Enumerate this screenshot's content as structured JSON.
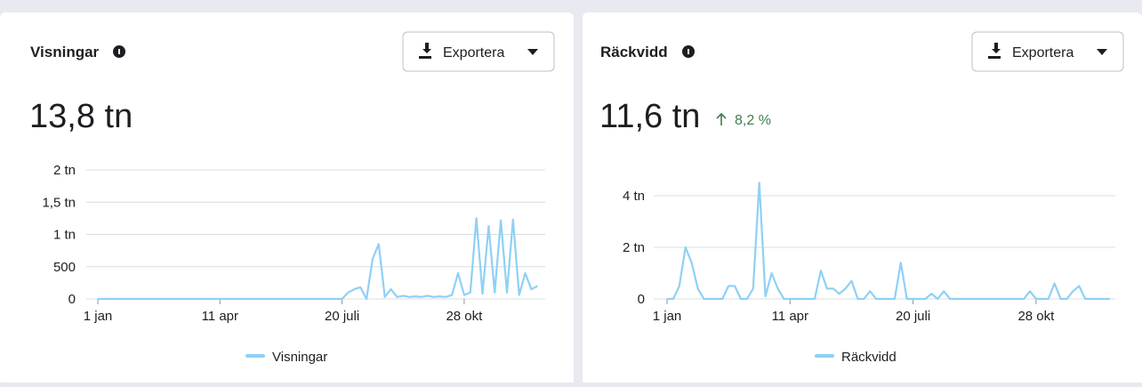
{
  "cards": [
    {
      "title": "Visningar",
      "total": "13,8 tn",
      "button": "Exportera"
    },
    {
      "title": "Räckvidd",
      "total": "11,6 tn",
      "change": "8,2 %",
      "button": "Exportera"
    }
  ],
  "chart_data": [
    {
      "type": "line",
      "categories": [
        "1 jan",
        null,
        null,
        null,
        null,
        null,
        null,
        null,
        null,
        null,
        null,
        null,
        null,
        null,
        null,
        null,
        null,
        null,
        null,
        null,
        "11 apr",
        null,
        null,
        null,
        null,
        null,
        null,
        null,
        null,
        null,
        null,
        null,
        null,
        null,
        null,
        null,
        null,
        null,
        null,
        null,
        "20 juli",
        null,
        null,
        null,
        null,
        null,
        null,
        null,
        null,
        null,
        null,
        null,
        null,
        null,
        null,
        null,
        null,
        null,
        null,
        null,
        "28 okt",
        null,
        null,
        null,
        null,
        null,
        null,
        null,
        null,
        null,
        null,
        null,
        null
      ],
      "series": [
        {
          "name": "Visningar",
          "color": "#8fd0f5",
          "values": [
            0,
            0,
            0,
            0,
            0,
            0,
            0,
            0,
            0,
            0,
            0,
            0,
            0,
            0,
            0,
            0,
            0,
            0,
            0,
            0,
            0,
            0,
            0,
            0,
            0,
            0,
            0,
            0,
            0,
            0,
            0,
            0,
            0,
            0,
            0,
            0,
            0,
            0,
            0,
            0,
            0,
            100,
            150,
            180,
            0,
            620,
            850,
            30,
            150,
            30,
            50,
            30,
            40,
            30,
            50,
            30,
            40,
            30,
            60,
            400,
            60,
            100,
            1250,
            80,
            1130,
            100,
            1220,
            100,
            1230,
            60,
            400,
            150,
            200
          ]
        }
      ],
      "ylim": [
        0,
        2000
      ],
      "yticks": [
        0,
        500,
        {
          "value": 1000,
          "label": "1 tn"
        },
        {
          "value": 1500,
          "label": "1,5 tn"
        },
        {
          "value": 2000,
          "label": "2 tn"
        }
      ],
      "grid": true
    },
    {
      "type": "line",
      "categories": [
        "1 jan",
        null,
        null,
        null,
        null,
        null,
        null,
        null,
        null,
        null,
        null,
        null,
        null,
        null,
        null,
        null,
        null,
        null,
        null,
        null,
        "11 apr",
        null,
        null,
        null,
        null,
        null,
        null,
        null,
        null,
        null,
        null,
        null,
        null,
        null,
        null,
        null,
        null,
        null,
        null,
        null,
        "20 juli",
        null,
        null,
        null,
        null,
        null,
        null,
        null,
        null,
        null,
        null,
        null,
        null,
        null,
        null,
        null,
        null,
        null,
        null,
        null,
        "28 okt",
        null,
        null,
        null,
        null,
        null,
        null,
        null,
        null,
        null,
        null,
        null,
        null
      ],
      "series": [
        {
          "name": "Räckvidd",
          "color": "#8fd0f5",
          "values": [
            0,
            0,
            500,
            2000,
            1400,
            400,
            0,
            0,
            0,
            0,
            500,
            500,
            0,
            0,
            400,
            4500,
            100,
            1000,
            400,
            0,
            0,
            0,
            0,
            0,
            0,
            1100,
            400,
            400,
            200,
            400,
            700,
            0,
            0,
            300,
            0,
            0,
            0,
            0,
            1400,
            0,
            0,
            0,
            0,
            200,
            0,
            300,
            0,
            0,
            0,
            0,
            0,
            0,
            0,
            0,
            0,
            0,
            0,
            0,
            0,
            300,
            0,
            0,
            0,
            600,
            0,
            0,
            300,
            500,
            0,
            0,
            0,
            0,
            0
          ]
        }
      ],
      "ylim": [
        0,
        4000
      ],
      "yticks": [
        0,
        {
          "value": 2000,
          "label": "2 tn"
        },
        {
          "value": 4000,
          "label": "4 tn"
        }
      ],
      "grid": true
    }
  ]
}
